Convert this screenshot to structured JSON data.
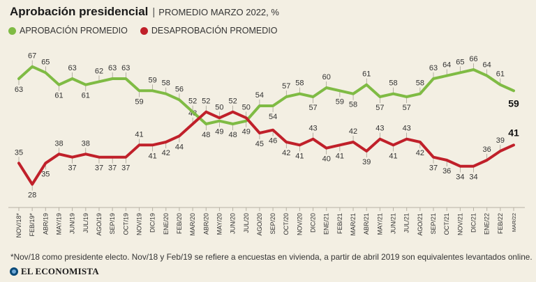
{
  "header": {
    "title": "Aprobación presidencial",
    "separator": "|",
    "subtitle": "PROMEDIO MARZO 2022, %"
  },
  "legend": [
    {
      "label": "APROBACIÓN PROMEDIO",
      "color": "#7fbb44"
    },
    {
      "label": "DESAPROBACIÓN PROMEDIO",
      "color": "#c0202a"
    }
  ],
  "chart_data": {
    "type": "line",
    "title": "Aprobación presidencial",
    "subtitle": "PROMEDIO MARZO 2022, %",
    "xlabel": "",
    "ylabel": "",
    "categories": [
      "NOV/18*",
      "FEB/19*",
      "ABR/19",
      "MAY/19",
      "JUN/19",
      "JUL/19",
      "AGO/19",
      "SEP/19",
      "OCT/19",
      "NOV/19",
      "DIC/19",
      "ENE/20",
      "FEB/20",
      "MAR/20",
      "ABR/20",
      "MAY/20",
      "JUN/20",
      "JUL/20",
      "AGO/20",
      "SEP/20",
      "OCT/20",
      "NOV/20",
      "DIC/20",
      "ENE/21",
      "FEB/21",
      "MAR/21",
      "ABR/21",
      "MAY/21",
      "JUN/21",
      "JUL/21",
      "AGO/21",
      "SEP/21",
      "OCT/21",
      "NOV/21",
      "DIC/21",
      "ENE/22",
      "FEB/22",
      "MAR/22"
    ],
    "series": [
      {
        "name": "APROBACIÓN PROMEDIO",
        "color": "#7fbb44",
        "values": [
          63,
          67,
          65,
          61,
          63,
          61,
          62,
          63,
          63,
          59,
          59,
          58,
          56,
          52,
          48,
          49,
          48,
          49,
          54,
          54,
          57,
          58,
          57,
          60,
          59,
          58,
          61,
          57,
          58,
          57,
          58,
          63,
          64,
          65,
          66,
          64,
          61,
          59
        ]
      },
      {
        "name": "DESAPROBACIÓN PROMEDIO",
        "color": "#c0202a",
        "values": [
          35,
          28,
          35,
          38,
          37,
          38,
          37,
          37,
          37,
          41,
          41,
          42,
          44,
          48,
          52,
          50,
          52,
          50,
          45,
          46,
          42,
          41,
          43,
          40,
          41,
          42,
          39,
          43,
          41,
          43,
          42,
          37,
          36,
          34,
          34,
          36,
          39,
          41
        ]
      }
    ],
    "ylim": [
      24,
      72
    ],
    "grid": false,
    "final_labels": {
      "approval": "59",
      "disapproval": "41"
    }
  },
  "footnote": "*Nov/18 como presidente electo. Nov/18 y Feb/19 se refiere a encuestas en vivienda, a partir de abril 2019 son equivalentes levantados online.",
  "brand": "EL ECONOMISTA"
}
